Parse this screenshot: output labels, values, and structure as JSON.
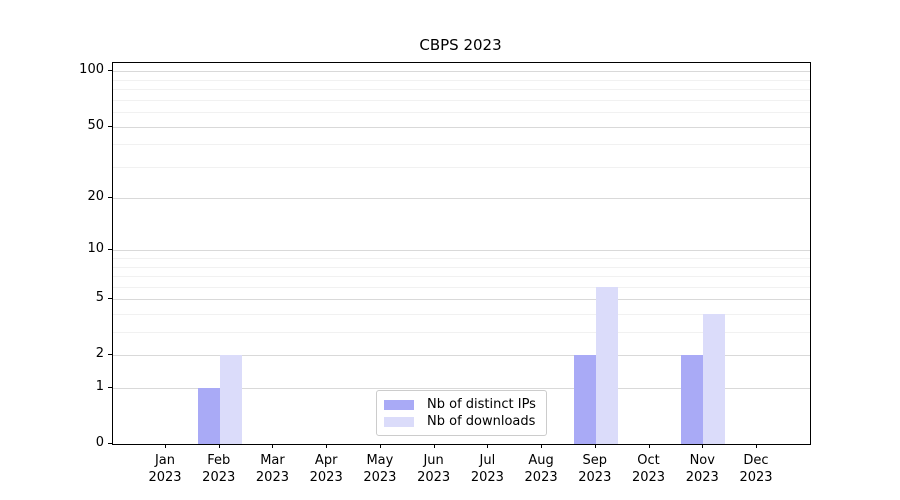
{
  "title": "CBPS 2023",
  "chart_data": {
    "type": "bar",
    "title": "CBPS 2023",
    "categories": [
      "Jan",
      "Feb",
      "Mar",
      "Apr",
      "May",
      "Jun",
      "Jul",
      "Aug",
      "Sep",
      "Oct",
      "Nov",
      "Dec"
    ],
    "category_year": "2023",
    "series": [
      {
        "name": "Nb of distinct IPs",
        "color": "#a9aaf6",
        "values": [
          0,
          1,
          0,
          0,
          0,
          0,
          0,
          0,
          2,
          0,
          2,
          0
        ]
      },
      {
        "name": "Nb of downloads",
        "color": "#dbdcfa",
        "values": [
          0,
          2,
          0,
          0,
          0,
          0,
          0,
          0,
          6,
          0,
          4,
          0
        ]
      }
    ],
    "xlabel": "",
    "ylabel": "",
    "y_axis": {
      "scale": "log1p",
      "min": 0,
      "max": 111,
      "major_ticks": [
        0,
        1,
        2,
        5,
        10,
        20,
        50,
        100
      ],
      "minor_gridlines": [
        3,
        4,
        6,
        7,
        8,
        9,
        30,
        40,
        60,
        70,
        80,
        90
      ]
    },
    "grid": {
      "horizontal": true,
      "vertical": false,
      "major_color": "#d9d9d9",
      "minor_color": "#f1f1f1"
    },
    "legend": {
      "position": "lower-center-inside",
      "entries": [
        "Nb of distinct IPs",
        "Nb of downloads"
      ]
    },
    "frame_color": "#000000",
    "background_color": "#ffffff"
  }
}
